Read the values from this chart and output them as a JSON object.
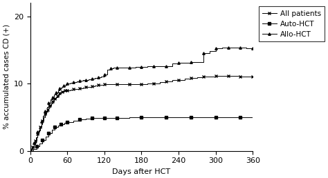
{
  "title": "",
  "xlabel": "Days after HCT",
  "ylabel": "% accumulated cases CD (+)",
  "xlim": [
    0,
    360
  ],
  "ylim": [
    0,
    22
  ],
  "yticks": [
    0,
    10,
    20
  ],
  "xticks": [
    0,
    60,
    120,
    180,
    240,
    300,
    360
  ],
  "legend_labels": [
    "All patients",
    "Auto-HCT",
    "Allo-HCT"
  ],
  "all_patients": {
    "x": [
      0,
      2,
      4,
      6,
      8,
      10,
      12,
      14,
      16,
      18,
      20,
      22,
      24,
      26,
      28,
      30,
      32,
      34,
      36,
      38,
      40,
      42,
      44,
      46,
      48,
      50,
      52,
      54,
      56,
      58,
      60,
      65,
      70,
      75,
      80,
      85,
      90,
      95,
      100,
      105,
      110,
      115,
      120,
      130,
      140,
      150,
      160,
      170,
      180,
      190,
      200,
      210,
      220,
      230,
      240,
      250,
      260,
      270,
      280,
      290,
      300,
      310,
      320,
      330,
      340,
      350,
      360
    ],
    "y": [
      0,
      0.3,
      0.6,
      1.0,
      1.5,
      2.0,
      2.5,
      3.0,
      3.5,
      4.0,
      4.5,
      5.0,
      5.5,
      5.8,
      6.1,
      6.4,
      6.7,
      7.0,
      7.3,
      7.6,
      7.8,
      8.0,
      8.2,
      8.4,
      8.6,
      8.7,
      8.8,
      8.9,
      9.0,
      9.0,
      9.0,
      9.1,
      9.2,
      9.2,
      9.3,
      9.4,
      9.5,
      9.5,
      9.6,
      9.7,
      9.8,
      9.8,
      9.9,
      9.9,
      9.9,
      9.9,
      9.9,
      9.9,
      9.9,
      10.0,
      10.0,
      10.2,
      10.3,
      10.5,
      10.5,
      10.7,
      10.8,
      10.9,
      11.0,
      11.0,
      11.1,
      11.1,
      11.1,
      11.1,
      11.0,
      11.0,
      11.0
    ]
  },
  "auto_hct": {
    "x": [
      0,
      5,
      10,
      15,
      20,
      25,
      30,
      35,
      40,
      45,
      50,
      55,
      60,
      70,
      80,
      90,
      100,
      110,
      120,
      130,
      140,
      160,
      180,
      200,
      220,
      240,
      260,
      280,
      300,
      320,
      340,
      360
    ],
    "y": [
      0,
      0.3,
      0.7,
      1.1,
      1.6,
      2.1,
      2.6,
      3.1,
      3.5,
      3.8,
      4.0,
      4.2,
      4.3,
      4.5,
      4.7,
      4.8,
      4.9,
      4.9,
      4.9,
      4.9,
      4.9,
      5.0,
      5.0,
      5.0,
      5.0,
      5.0,
      5.0,
      5.0,
      5.0,
      5.0,
      5.0,
      5.0
    ]
  },
  "allo_hct": {
    "x": [
      0,
      3,
      6,
      9,
      12,
      15,
      18,
      21,
      24,
      27,
      30,
      33,
      36,
      39,
      42,
      45,
      48,
      51,
      54,
      57,
      60,
      65,
      70,
      75,
      80,
      85,
      90,
      95,
      100,
      105,
      110,
      115,
      120,
      125,
      130,
      135,
      140,
      150,
      160,
      170,
      180,
      190,
      200,
      210,
      220,
      230,
      240,
      250,
      260,
      270,
      280,
      290,
      300,
      310,
      320,
      330,
      340,
      350,
      360
    ],
    "y": [
      0,
      0.5,
      1.2,
      2.0,
      2.8,
      3.6,
      4.4,
      5.2,
      5.9,
      6.5,
      7.1,
      7.6,
      8.0,
      8.4,
      8.7,
      9.0,
      9.3,
      9.5,
      9.7,
      9.9,
      10.0,
      10.1,
      10.2,
      10.3,
      10.4,
      10.5,
      10.5,
      10.6,
      10.7,
      10.8,
      10.9,
      11.0,
      11.3,
      12.1,
      12.3,
      12.4,
      12.4,
      12.4,
      12.4,
      12.5,
      12.5,
      12.6,
      12.6,
      12.6,
      12.6,
      13.0,
      13.1,
      13.1,
      13.2,
      13.2,
      14.5,
      14.8,
      15.2,
      15.3,
      15.3,
      15.3,
      15.3,
      15.2,
      15.2
    ]
  },
  "line_color": "#000000",
  "bg_color": "#ffffff",
  "marker_size": 2.5,
  "line_width": 0.7
}
